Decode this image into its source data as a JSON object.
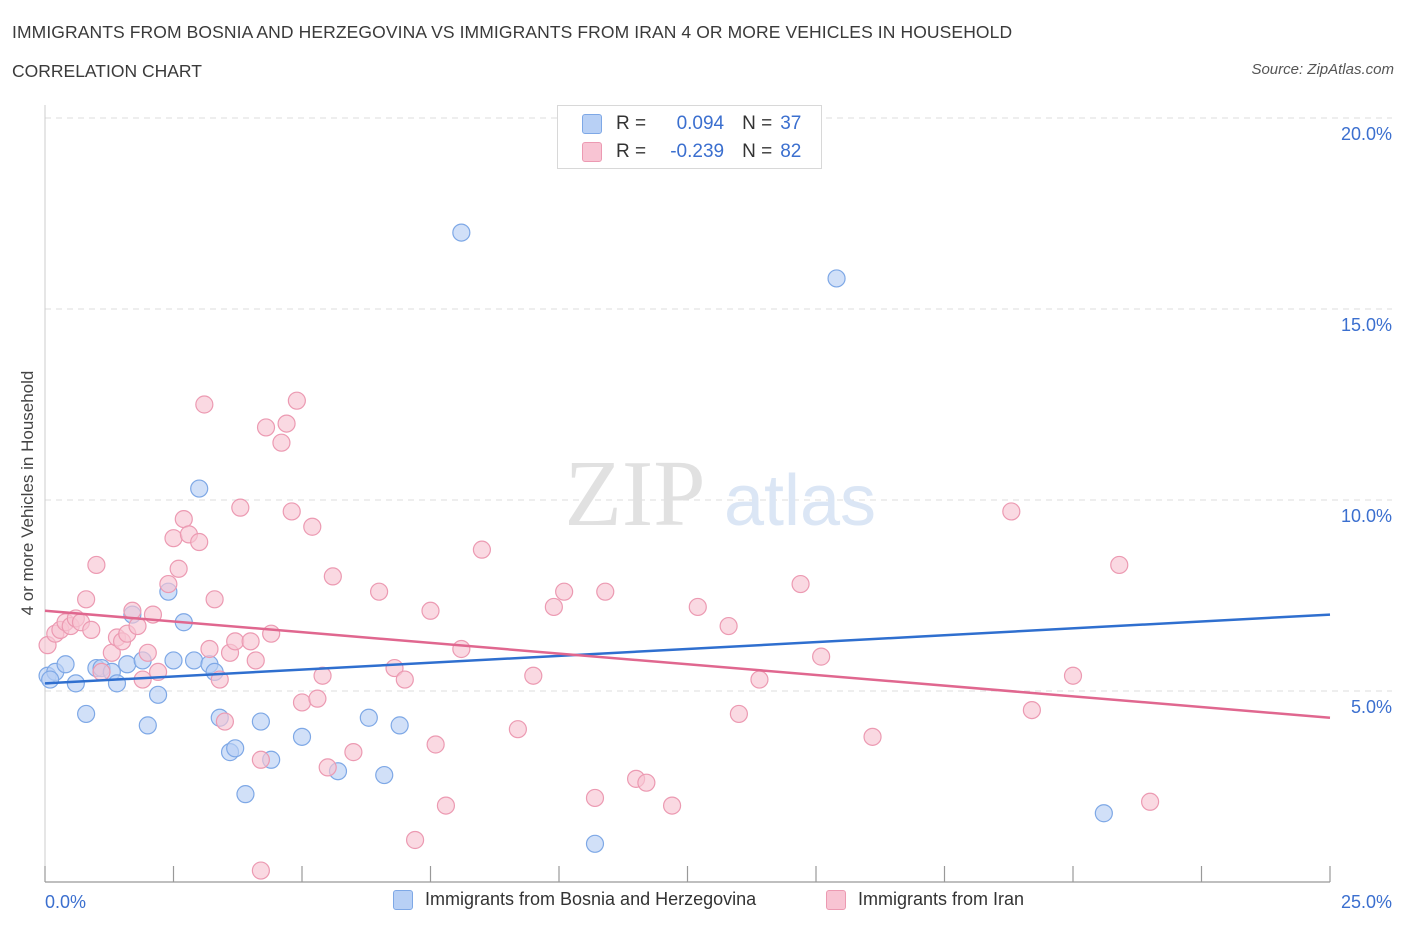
{
  "header": {
    "title": "IMMIGRANTS FROM BOSNIA AND HERZEGOVINA VS IMMIGRANTS FROM IRAN 4 OR MORE VEHICLES IN HOUSEHOLD",
    "subtitle": "CORRELATION CHART",
    "source": "Source: ZipAtlas.com"
  },
  "watermark": {
    "zip": "ZIP",
    "atlas": "atlas"
  },
  "colors": {
    "blue_fill": "#b8d0f5",
    "blue_stroke": "#7ea8e6",
    "blue_line": "#2f6fcf",
    "pink_fill": "#f8c4d3",
    "pink_stroke": "#ec9ab2",
    "pink_line": "#e0678f",
    "tick_text": "#3b6fcf",
    "grid": "#dddddd"
  },
  "stats_legend": {
    "r_label": "R =",
    "n_label": "N =",
    "rows": [
      {
        "r": "0.094",
        "n": "37"
      },
      {
        "r": "-0.239",
        "n": "82"
      }
    ]
  },
  "chart_data": {
    "type": "scatter",
    "title": "IMMIGRANTS FROM BOSNIA AND HERZEGOVINA VS IMMIGRANTS FROM IRAN 4 OR MORE VEHICLES IN HOUSEHOLD",
    "xlabel": "",
    "ylabel": "4 or more Vehicles in Household",
    "xlim": [
      0,
      25
    ],
    "ylim": [
      0,
      20
    ],
    "x_tick_labels": [
      "0.0%",
      "25.0%"
    ],
    "y_ticks": [
      5,
      10,
      15,
      20
    ],
    "y_tick_labels": [
      "5.0%",
      "10.0%",
      "15.0%",
      "20.0%"
    ],
    "legend_position": "bottom-center",
    "series": [
      {
        "name": "Immigrants from Bosnia and Herzegovina",
        "R": 0.094,
        "N": 37,
        "trend": {
          "x": [
            0,
            25
          ],
          "y": [
            5.2,
            7.0
          ]
        },
        "points": [
          [
            0.05,
            5.4
          ],
          [
            0.2,
            5.5
          ],
          [
            0.4,
            5.7
          ],
          [
            0.6,
            5.2
          ],
          [
            0.8,
            4.4
          ],
          [
            1.0,
            5.6
          ],
          [
            1.1,
            5.6
          ],
          [
            1.3,
            5.5
          ],
          [
            1.4,
            5.2
          ],
          [
            1.6,
            5.7
          ],
          [
            1.7,
            7.0
          ],
          [
            1.9,
            5.8
          ],
          [
            2.0,
            4.1
          ],
          [
            2.2,
            4.9
          ],
          [
            2.4,
            7.6
          ],
          [
            2.5,
            5.8
          ],
          [
            2.7,
            6.8
          ],
          [
            2.9,
            5.8
          ],
          [
            3.0,
            10.3
          ],
          [
            3.2,
            5.7
          ],
          [
            3.3,
            5.5
          ],
          [
            3.4,
            4.3
          ],
          [
            3.6,
            3.4
          ],
          [
            3.7,
            3.5
          ],
          [
            3.9,
            2.3
          ],
          [
            4.2,
            4.2
          ],
          [
            4.4,
            3.2
          ],
          [
            5.0,
            3.8
          ],
          [
            5.7,
            2.9
          ],
          [
            6.3,
            4.3
          ],
          [
            6.6,
            2.8
          ],
          [
            6.9,
            4.1
          ],
          [
            8.1,
            17.0
          ],
          [
            10.7,
            1.0
          ],
          [
            15.4,
            15.8
          ],
          [
            20.6,
            1.8
          ],
          [
            0.1,
            5.3
          ]
        ]
      },
      {
        "name": "Immigrants from Iran",
        "R": -0.239,
        "N": 82,
        "trend": {
          "x": [
            0,
            25
          ],
          "y": [
            7.1,
            4.3
          ]
        },
        "points": [
          [
            0.05,
            6.2
          ],
          [
            0.2,
            6.5
          ],
          [
            0.3,
            6.6
          ],
          [
            0.4,
            6.8
          ],
          [
            0.5,
            6.7
          ],
          [
            0.6,
            6.9
          ],
          [
            0.7,
            6.8
          ],
          [
            0.8,
            7.4
          ],
          [
            0.9,
            6.6
          ],
          [
            1.0,
            8.3
          ],
          [
            1.1,
            5.5
          ],
          [
            1.3,
            6.0
          ],
          [
            1.4,
            6.4
          ],
          [
            1.5,
            6.3
          ],
          [
            1.6,
            6.5
          ],
          [
            1.7,
            7.1
          ],
          [
            1.8,
            6.7
          ],
          [
            1.9,
            5.3
          ],
          [
            2.0,
            6.0
          ],
          [
            2.1,
            7.0
          ],
          [
            2.2,
            5.5
          ],
          [
            2.4,
            7.8
          ],
          [
            2.5,
            9.0
          ],
          [
            2.6,
            8.2
          ],
          [
            2.7,
            9.5
          ],
          [
            2.8,
            9.1
          ],
          [
            3.0,
            8.9
          ],
          [
            3.1,
            12.5
          ],
          [
            3.2,
            6.1
          ],
          [
            3.3,
            7.4
          ],
          [
            3.4,
            5.3
          ],
          [
            3.5,
            4.2
          ],
          [
            3.6,
            6.0
          ],
          [
            3.7,
            6.3
          ],
          [
            3.8,
            9.8
          ],
          [
            4.0,
            6.3
          ],
          [
            4.1,
            5.8
          ],
          [
            4.2,
            3.2
          ],
          [
            4.3,
            11.9
          ],
          [
            4.4,
            6.5
          ],
          [
            4.6,
            11.5
          ],
          [
            4.7,
            12.0
          ],
          [
            4.8,
            9.7
          ],
          [
            4.9,
            12.6
          ],
          [
            5.0,
            4.7
          ],
          [
            5.2,
            9.3
          ],
          [
            5.3,
            4.8
          ],
          [
            5.4,
            5.4
          ],
          [
            5.5,
            3.0
          ],
          [
            5.6,
            8.0
          ],
          [
            6.0,
            3.4
          ],
          [
            6.5,
            7.6
          ],
          [
            6.8,
            5.6
          ],
          [
            7.0,
            5.3
          ],
          [
            7.2,
            1.1
          ],
          [
            7.5,
            7.1
          ],
          [
            7.6,
            3.6
          ],
          [
            7.8,
            2.0
          ],
          [
            8.1,
            6.1
          ],
          [
            8.5,
            8.7
          ],
          [
            9.2,
            4.0
          ],
          [
            9.5,
            5.4
          ],
          [
            9.9,
            7.2
          ],
          [
            10.1,
            7.6
          ],
          [
            10.7,
            2.2
          ],
          [
            10.9,
            7.6
          ],
          [
            11.5,
            2.7
          ],
          [
            11.7,
            2.6
          ],
          [
            12.2,
            2.0
          ],
          [
            12.7,
            7.2
          ],
          [
            13.3,
            6.7
          ],
          [
            13.5,
            4.4
          ],
          [
            13.9,
            5.3
          ],
          [
            14.7,
            7.8
          ],
          [
            15.1,
            5.9
          ],
          [
            16.1,
            3.8
          ],
          [
            18.8,
            9.7
          ],
          [
            19.2,
            4.5
          ],
          [
            20.0,
            5.4
          ],
          [
            20.9,
            8.3
          ],
          [
            21.5,
            2.1
          ],
          [
            4.2,
            0.3
          ]
        ]
      }
    ]
  },
  "bottom_legend": {
    "items": [
      {
        "label": "Immigrants from Bosnia and Herzegovina"
      },
      {
        "label": "Immigrants from Iran"
      }
    ]
  }
}
